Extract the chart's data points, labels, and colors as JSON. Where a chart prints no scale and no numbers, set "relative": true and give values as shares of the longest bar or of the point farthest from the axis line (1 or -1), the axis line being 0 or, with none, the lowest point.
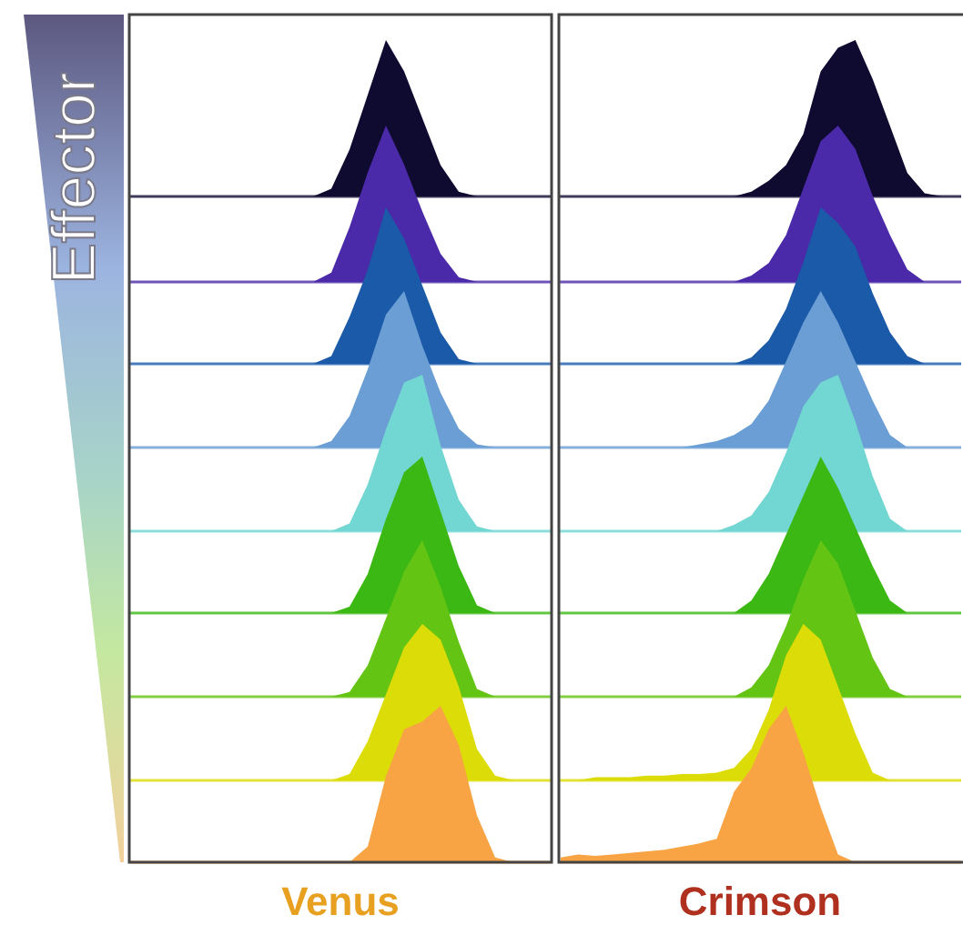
{
  "chart_data": [
    {
      "type": "other",
      "annotations": [
        "Effector"
      ]
    },
    {
      "type": "area",
      "relative": true,
      "categories": [
        null,
        null,
        null,
        null,
        null,
        null,
        null,
        null,
        null,
        null,
        null,
        null,
        null,
        null,
        null,
        null,
        null,
        null,
        null,
        null,
        null,
        null,
        null,
        null
      ],
      "series": [
        {
          "color": "#0f0a30",
          "values": [
            0,
            0,
            0,
            0,
            0,
            0,
            0,
            0,
            0,
            0,
            0,
            0.05,
            0.3,
            0.65,
            1,
            0.8,
            0.5,
            0.2,
            0.03,
            0,
            0,
            0,
            0,
            0
          ]
        }
      ]
    },
    {
      "type": "area",
      "relative": true,
      "categories": [
        null,
        null,
        null,
        null,
        null,
        null,
        null,
        null,
        null,
        null,
        null,
        null,
        null,
        null,
        null,
        null,
        null,
        null,
        null,
        null,
        null,
        null,
        null,
        null
      ],
      "series": [
        {
          "color": "#4a2aa8",
          "values": [
            0,
            0,
            0,
            0,
            0,
            0,
            0,
            0,
            0,
            0,
            0,
            0.06,
            0.35,
            0.7,
            1,
            0.75,
            0.45,
            0.18,
            0.03,
            0,
            0,
            0,
            0,
            0
          ]
        }
      ]
    },
    {
      "type": "area",
      "relative": true,
      "categories": [
        null,
        null,
        null,
        null,
        null,
        null,
        null,
        null,
        null,
        null,
        null,
        null,
        null,
        null,
        null,
        null,
        null,
        null,
        null,
        null,
        null,
        null,
        null,
        null
      ],
      "series": [
        {
          "color": "#1a5aa8",
          "values": [
            0,
            0,
            0,
            0,
            0,
            0,
            0,
            0,
            0,
            0,
            0,
            0.05,
            0.3,
            0.6,
            1,
            0.8,
            0.5,
            0.2,
            0.03,
            0,
            0,
            0,
            0,
            0
          ]
        }
      ]
    },
    {
      "type": "area",
      "relative": true,
      "categories": [
        null,
        null,
        null,
        null,
        null,
        null,
        null,
        null,
        null,
        null,
        null,
        null,
        null,
        null,
        null,
        null,
        null,
        null,
        null,
        null,
        null,
        null,
        null,
        null
      ],
      "series": [
        {
          "color": "#6a9ed4",
          "values": [
            0,
            0,
            0,
            0,
            0,
            0,
            0,
            0,
            0,
            0,
            0,
            0.04,
            0.2,
            0.5,
            0.85,
            1,
            0.65,
            0.35,
            0.12,
            0.02,
            0,
            0,
            0,
            0
          ]
        }
      ]
    },
    {
      "type": "area",
      "relative": true,
      "categories": [
        null,
        null,
        null,
        null,
        null,
        null,
        null,
        null,
        null,
        null,
        null,
        null,
        null,
        null,
        null,
        null,
        null,
        null,
        null,
        null,
        null,
        null,
        null,
        null
      ],
      "series": [
        {
          "color": "#72d6d2",
          "values": [
            0,
            0,
            0,
            0,
            0,
            0,
            0,
            0,
            0,
            0,
            0,
            0,
            0.05,
            0.3,
            0.65,
            0.95,
            1,
            0.55,
            0.2,
            0.03,
            0,
            0,
            0,
            0
          ]
        }
      ]
    },
    {
      "type": "area",
      "relative": true,
      "categories": [
        null,
        null,
        null,
        null,
        null,
        null,
        null,
        null,
        null,
        null,
        null,
        null,
        null,
        null,
        null,
        null,
        null,
        null,
        null,
        null,
        null,
        null,
        null,
        null
      ],
      "series": [
        {
          "color": "#3cb814",
          "values": [
            0,
            0,
            0,
            0,
            0,
            0,
            0,
            0,
            0,
            0,
            0,
            0,
            0.04,
            0.25,
            0.6,
            0.9,
            1,
            0.65,
            0.3,
            0.05,
            0,
            0,
            0,
            0
          ]
        }
      ]
    },
    {
      "type": "area",
      "relative": true,
      "categories": [
        null,
        null,
        null,
        null,
        null,
        null,
        null,
        null,
        null,
        null,
        null,
        null,
        null,
        null,
        null,
        null,
        null,
        null,
        null,
        null,
        null,
        null,
        null,
        null
      ],
      "series": [
        {
          "color": "#64c414",
          "values": [
            0,
            0,
            0,
            0,
            0,
            0,
            0,
            0,
            0,
            0,
            0,
            0,
            0.03,
            0.2,
            0.5,
            0.8,
            1,
            0.7,
            0.35,
            0.05,
            0,
            0,
            0,
            0
          ]
        }
      ]
    },
    {
      "type": "area",
      "relative": true,
      "categories": [
        null,
        null,
        null,
        null,
        null,
        null,
        null,
        null,
        null,
        null,
        null,
        null,
        null,
        null,
        null,
        null,
        null,
        null,
        null,
        null,
        null,
        null,
        null,
        null
      ],
      "series": [
        {
          "color": "#dcdc08",
          "values": [
            0,
            0,
            0,
            0,
            0,
            0,
            0,
            0,
            0,
            0,
            0,
            0,
            0.04,
            0.25,
            0.55,
            0.85,
            1,
            0.9,
            0.6,
            0.2,
            0.03,
            0,
            0,
            0
          ]
        }
      ]
    },
    {
      "type": "area",
      "relative": true,
      "xlabel": "Venus",
      "categories": [
        null,
        null,
        null,
        null,
        null,
        null,
        null,
        null,
        null,
        null,
        null,
        null,
        null,
        null,
        null,
        null,
        null,
        null,
        null,
        null,
        null,
        null,
        null,
        null
      ],
      "series": [
        {
          "color": "#f8a444",
          "values": [
            0,
            0,
            0,
            0,
            0,
            0,
            0,
            0,
            0,
            0,
            0,
            0,
            0,
            0.1,
            0.55,
            0.85,
            0.9,
            1,
            0.75,
            0.3,
            0.03,
            0,
            0,
            0
          ]
        }
      ]
    },
    {
      "type": "area",
      "relative": true,
      "categories": [
        null,
        null,
        null,
        null,
        null,
        null,
        null,
        null,
        null,
        null,
        null,
        null,
        null,
        null,
        null,
        null,
        null,
        null,
        null,
        null,
        null,
        null,
        null,
        null
      ],
      "series": [
        {
          "color": "#0f0a30",
          "values": [
            0,
            0,
            0,
            0,
            0,
            0,
            0,
            0,
            0,
            0,
            0,
            0.03,
            0.1,
            0.2,
            0.4,
            0.8,
            0.95,
            1,
            0.75,
            0.45,
            0.15,
            0.02,
            0,
            0
          ]
        }
      ]
    },
    {
      "type": "area",
      "relative": true,
      "categories": [
        null,
        null,
        null,
        null,
        null,
        null,
        null,
        null,
        null,
        null,
        null,
        null,
        null,
        null,
        null,
        null,
        null,
        null,
        null,
        null,
        null,
        null,
        null,
        null
      ],
      "series": [
        {
          "color": "#4a2aa8",
          "values": [
            0,
            0,
            0,
            0,
            0,
            0,
            0,
            0,
            0,
            0,
            0,
            0.04,
            0.12,
            0.3,
            0.6,
            0.9,
            1,
            0.85,
            0.55,
            0.3,
            0.08,
            0,
            0,
            0
          ]
        }
      ]
    },
    {
      "type": "area",
      "relative": true,
      "categories": [
        null,
        null,
        null,
        null,
        null,
        null,
        null,
        null,
        null,
        null,
        null,
        null,
        null,
        null,
        null,
        null,
        null,
        null,
        null,
        null,
        null,
        null,
        null,
        null
      ],
      "series": [
        {
          "color": "#1a5aa8",
          "values": [
            0,
            0,
            0,
            0,
            0,
            0,
            0,
            0,
            0,
            0,
            0,
            0.04,
            0.15,
            0.35,
            0.65,
            1,
            0.9,
            0.75,
            0.45,
            0.2,
            0.05,
            0,
            0,
            0
          ]
        }
      ]
    },
    {
      "type": "area",
      "relative": true,
      "categories": [
        null,
        null,
        null,
        null,
        null,
        null,
        null,
        null,
        null,
        null,
        null,
        null,
        null,
        null,
        null,
        null,
        null,
        null,
        null,
        null,
        null,
        null,
        null,
        null
      ],
      "series": [
        {
          "color": "#6a9ed4",
          "values": [
            0,
            0,
            0,
            0,
            0,
            0,
            0,
            0,
            0.02,
            0.04,
            0.08,
            0.15,
            0.3,
            0.55,
            0.8,
            1,
            0.8,
            0.55,
            0.3,
            0.08,
            0,
            0,
            0,
            0
          ]
        }
      ]
    },
    {
      "type": "area",
      "relative": true,
      "categories": [
        null,
        null,
        null,
        null,
        null,
        null,
        null,
        null,
        null,
        null,
        null,
        null,
        null,
        null,
        null,
        null,
        null,
        null,
        null,
        null,
        null,
        null,
        null,
        null
      ],
      "series": [
        {
          "color": "#72d6d2",
          "values": [
            0,
            0,
            0,
            0,
            0,
            0,
            0,
            0,
            0,
            0,
            0.04,
            0.1,
            0.25,
            0.5,
            0.8,
            0.95,
            1,
            0.7,
            0.35,
            0.08,
            0,
            0,
            0,
            0
          ]
        }
      ]
    },
    {
      "type": "area",
      "relative": true,
      "categories": [
        null,
        null,
        null,
        null,
        null,
        null,
        null,
        null,
        null,
        null,
        null,
        null,
        null,
        null,
        null,
        null,
        null,
        null,
        null,
        null,
        null,
        null,
        null,
        null
      ],
      "series": [
        {
          "color": "#3cb814",
          "values": [
            0,
            0,
            0,
            0,
            0,
            0,
            0,
            0,
            0,
            0,
            0,
            0.08,
            0.25,
            0.5,
            0.75,
            1,
            0.8,
            0.55,
            0.3,
            0.08,
            0,
            0,
            0,
            0
          ]
        }
      ]
    },
    {
      "type": "area",
      "relative": true,
      "categories": [
        null,
        null,
        null,
        null,
        null,
        null,
        null,
        null,
        null,
        null,
        null,
        null,
        null,
        null,
        null,
        null,
        null,
        null,
        null,
        null,
        null,
        null,
        null,
        null
      ],
      "series": [
        {
          "color": "#64c414",
          "values": [
            0,
            0,
            0,
            0,
            0,
            0,
            0,
            0,
            0,
            0,
            0,
            0.06,
            0.2,
            0.45,
            0.75,
            1,
            0.85,
            0.55,
            0.25,
            0.05,
            0,
            0,
            0,
            0
          ]
        }
      ]
    },
    {
      "type": "area",
      "relative": true,
      "categories": [
        null,
        null,
        null,
        null,
        null,
        null,
        null,
        null,
        null,
        null,
        null,
        null,
        null,
        null,
        null,
        null,
        null,
        null,
        null,
        null,
        null,
        null,
        null,
        null
      ],
      "series": [
        {
          "color": "#dcdc08",
          "values": [
            0,
            0,
            0.02,
            0.02,
            0.02,
            0.03,
            0.03,
            0.04,
            0.04,
            0.05,
            0.08,
            0.2,
            0.45,
            0.8,
            1,
            0.9,
            0.6,
            0.3,
            0.05,
            0,
            0,
            0,
            0,
            0
          ]
        }
      ]
    },
    {
      "type": "area",
      "relative": true,
      "xlabel": "Crimson",
      "categories": [
        null,
        null,
        null,
        null,
        null,
        null,
        null,
        null,
        null,
        null,
        null,
        null,
        null,
        null,
        null,
        null,
        null,
        null,
        null,
        null,
        null,
        null,
        null,
        null
      ],
      "series": [
        {
          "color": "#f8a444",
          "values": [
            0.03,
            0.05,
            0.04,
            0.05,
            0.06,
            0.07,
            0.08,
            0.1,
            0.12,
            0.15,
            0.45,
            0.6,
            0.85,
            1,
            0.7,
            0.35,
            0.05,
            0,
            0,
            0,
            0,
            0,
            0,
            0
          ]
        }
      ]
    }
  ]
}
